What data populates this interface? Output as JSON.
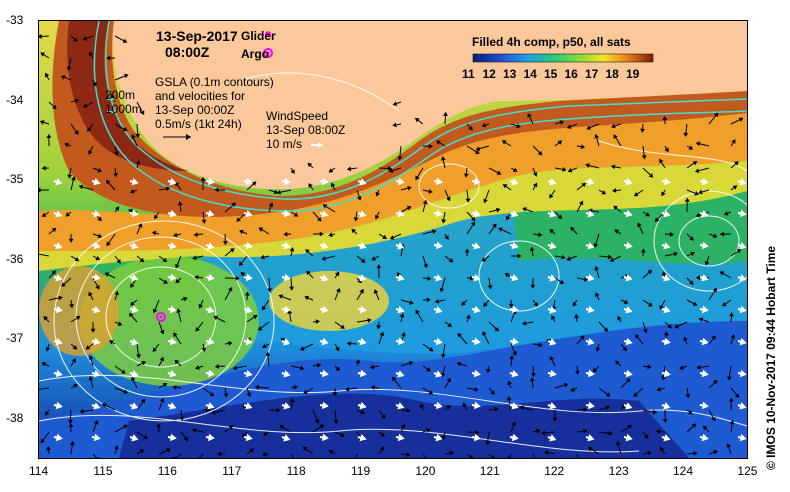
{
  "map": {
    "date": "13-Sep-2017",
    "time": "08:00Z",
    "legend_glider": "Glider",
    "legend_argo": "Argo",
    "gsla_lines": [
      "GSLA (0.1m contours)",
      "and velocities for",
      "13-Sep 00:00Z"
    ],
    "velocity_scale": "0.5m/s (1kt 24h)",
    "depth_200": "200m",
    "depth_1000": "1000m",
    "wind_title": "WindSpeed",
    "wind_time": "13-Sep 08:00Z",
    "wind_scale": "10 m/s",
    "colorbar_title": "Filled 4h comp, p50, all sats",
    "colorbar_ticks": [
      "11",
      "12",
      "13",
      "14",
      "15",
      "16",
      "17",
      "18",
      "19"
    ],
    "credit": "© IMOS 10-Nov-2017 09:44 Hobart Time",
    "x_ticks": [
      "114",
      "115",
      "116",
      "117",
      "118",
      "119",
      "120",
      "121",
      "122",
      "123",
      "124",
      "125"
    ],
    "y_ticks": [
      "-33",
      "-34",
      "-35",
      "-36",
      "-37",
      "-38"
    ],
    "colors": {
      "land": "#fac89b",
      "cold": "#1432a0",
      "cool": "#1e8cdc",
      "mid": "#28b45a",
      "warm": "#b4dc32",
      "warmer": "#f5a028",
      "hot": "#8c2814",
      "argo": "#ff00ff",
      "glider": "#ff00ff"
    }
  }
}
